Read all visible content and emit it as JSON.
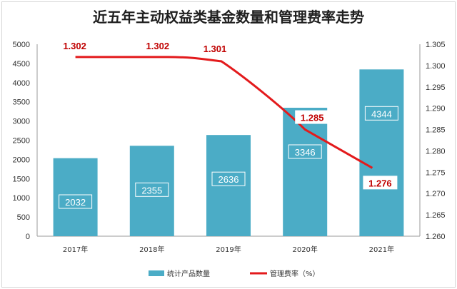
{
  "chart_data": {
    "type": "bar",
    "title": "近五年主动权益类基金数量和管理费率走势",
    "categories": [
      "2017年",
      "2018年",
      "2019年",
      "2020年",
      "2021年"
    ],
    "series": [
      {
        "name": "统计产品数量",
        "type": "bar",
        "axis": "left",
        "color": "#4bacc6",
        "values": [
          2032,
          2355,
          2636,
          3346,
          4344
        ]
      },
      {
        "name": "管理费率（%）",
        "type": "line",
        "axis": "right",
        "color": "#e31a1c",
        "values": [
          1.302,
          1.302,
          1.301,
          1.285,
          1.276
        ]
      }
    ],
    "y_left": {
      "ylim": [
        0,
        5000
      ],
      "ticks": [
        "0",
        "500",
        "1000",
        "1500",
        "2000",
        "2500",
        "3000",
        "3500",
        "4000",
        "4500",
        "5000"
      ]
    },
    "y_right": {
      "ylim": [
        1.26,
        1.305
      ],
      "ticks": [
        "1.260",
        "1.265",
        "1.270",
        "1.275",
        "1.280",
        "1.285",
        "1.290",
        "1.295",
        "1.300",
        "1.305"
      ]
    },
    "bar_labels": [
      "2032",
      "2355",
      "2636",
      "3346",
      "4344"
    ],
    "line_labels": [
      "1.302",
      "1.302",
      "1.301",
      "1.285",
      "1.276"
    ],
    "grid": false,
    "legend": "bottom"
  }
}
